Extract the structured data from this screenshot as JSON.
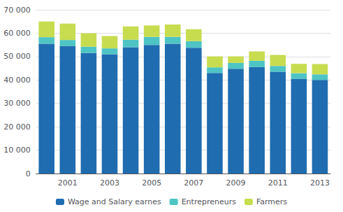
{
  "chart_data": {
    "type": "bar",
    "stacked": true,
    "categories": [
      null,
      "2001",
      null,
      "2003",
      null,
      "2005",
      null,
      "2007",
      null,
      "2009",
      null,
      "2011",
      null,
      "2013"
    ],
    "series": [
      {
        "name": "Wage and Salary earnes",
        "color": "#1F6CB0",
        "values": [
          55500,
          54500,
          51500,
          51000,
          54000,
          55000,
          55500,
          53800,
          43000,
          44800,
          45500,
          43500,
          40500,
          40000
        ]
      },
      {
        "name": "Entrepreneurs",
        "color": "#4EC4C4",
        "values": [
          2800,
          2600,
          2700,
          2500,
          3200,
          3400,
          2900,
          2800,
          2400,
          2500,
          2700,
          2500,
          2400,
          2400
        ]
      },
      {
        "name": "Farmers",
        "color": "#C8DC50",
        "values": [
          6700,
          7000,
          5800,
          5300,
          5700,
          4900,
          5300,
          5100,
          4700,
          2800,
          4000,
          4700,
          4000,
          4400
        ]
      }
    ],
    "ylim": [
      0,
      70000
    ],
    "yticks": [
      0,
      {
        "value": 10000,
        "label": "10 000"
      },
      {
        "value": 20000,
        "label": "20 000"
      },
      {
        "value": 30000,
        "label": "30 000"
      },
      {
        "value": 40000,
        "label": "40 000"
      },
      {
        "value": 50000,
        "label": "50 000"
      },
      {
        "value": 60000,
        "label": "60 000"
      },
      {
        "value": 70000,
        "label": "70 000"
      }
    ],
    "grid": true,
    "legend": "bottom"
  }
}
